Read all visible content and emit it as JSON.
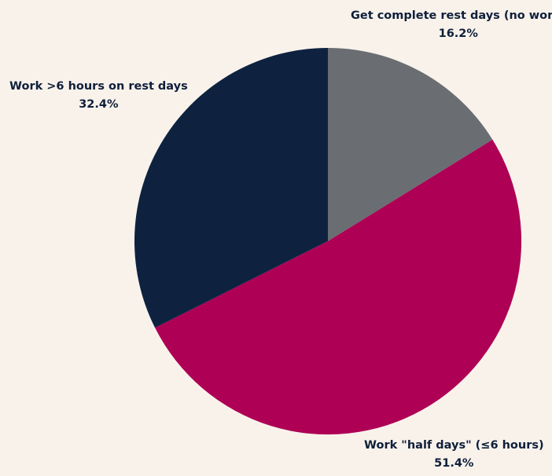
{
  "chart_data": {
    "type": "pie",
    "title": "",
    "start_angle_deg": 0,
    "direction": "clockwise",
    "slices": [
      {
        "label": "Get complete rest days (no work)",
        "value": 16.2,
        "value_label": "16.2%",
        "color": "#6a6e72"
      },
      {
        "label": "Work \"half days\" (≤6 hours)",
        "value": 51.4,
        "value_label": "51.4%",
        "color": "#ae0055"
      },
      {
        "label": "Work >6 hours on rest days",
        "value": 32.4,
        "value_label": "32.4%",
        "color": "#0e2240"
      }
    ]
  }
}
